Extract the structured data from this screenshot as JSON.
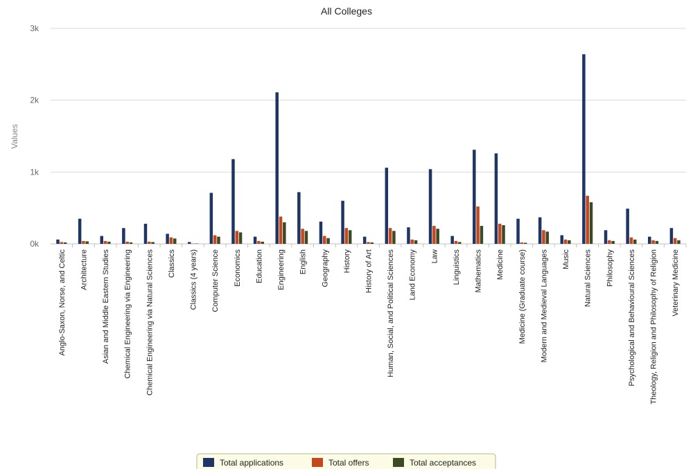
{
  "chart_data": {
    "type": "bar",
    "title": "All Colleges",
    "xlabel": "",
    "ylabel": "Values",
    "ylim": [
      0,
      3000
    ],
    "y_ticks": [
      "0k",
      "1k",
      "2k",
      "3k"
    ],
    "grid": true,
    "legend_position": "bottom-center",
    "colors": [
      "#1f3564",
      "#c4471d",
      "#3c4a26"
    ],
    "categories": [
      "Anglo-Saxon, Norse, and Celtic",
      "Architecture",
      "Asian and Middle Eastern Studies",
      "Chemical Engineering via Engineering",
      "Chemical Engineering via Natural Sciences",
      "Classics",
      "Classics (4 years)",
      "Computer Science",
      "Economics",
      "Education",
      "Engineering",
      "English",
      "Geography",
      "History",
      "History of Art",
      "Human, Social, and Political Sciences",
      "Land Economy",
      "Law",
      "Linguistics",
      "Mathematics",
      "Medicine",
      "Medicine (Graduate course)",
      "Modern and Medieval Languages",
      "Music",
      "Natural Sciences",
      "Philosophy",
      "Psychological and Behavioural Sciences",
      "Theology, Religion and Philosophy of Religion",
      "Veterinary Medicine"
    ],
    "series": [
      {
        "name": "Total applications",
        "values": [
          60,
          350,
          110,
          220,
          280,
          140,
          25,
          710,
          1180,
          100,
          2110,
          720,
          310,
          600,
          100,
          1060,
          230,
          1040,
          110,
          1310,
          1260,
          350,
          370,
          120,
          2640,
          190,
          490,
          100,
          220
        ]
      },
      {
        "name": "Total offers",
        "values": [
          25,
          40,
          40,
          30,
          30,
          90,
          5,
          120,
          180,
          40,
          380,
          210,
          110,
          220,
          25,
          220,
          60,
          250,
          40,
          520,
          280,
          20,
          190,
          60,
          670,
          50,
          90,
          50,
          80
        ]
      },
      {
        "name": "Total acceptances",
        "values": [
          20,
          35,
          30,
          20,
          25,
          75,
          5,
          100,
          160,
          30,
          300,
          180,
          80,
          190,
          20,
          180,
          50,
          210,
          25,
          250,
          260,
          15,
          170,
          50,
          580,
          40,
          60,
          40,
          50
        ]
      }
    ]
  }
}
